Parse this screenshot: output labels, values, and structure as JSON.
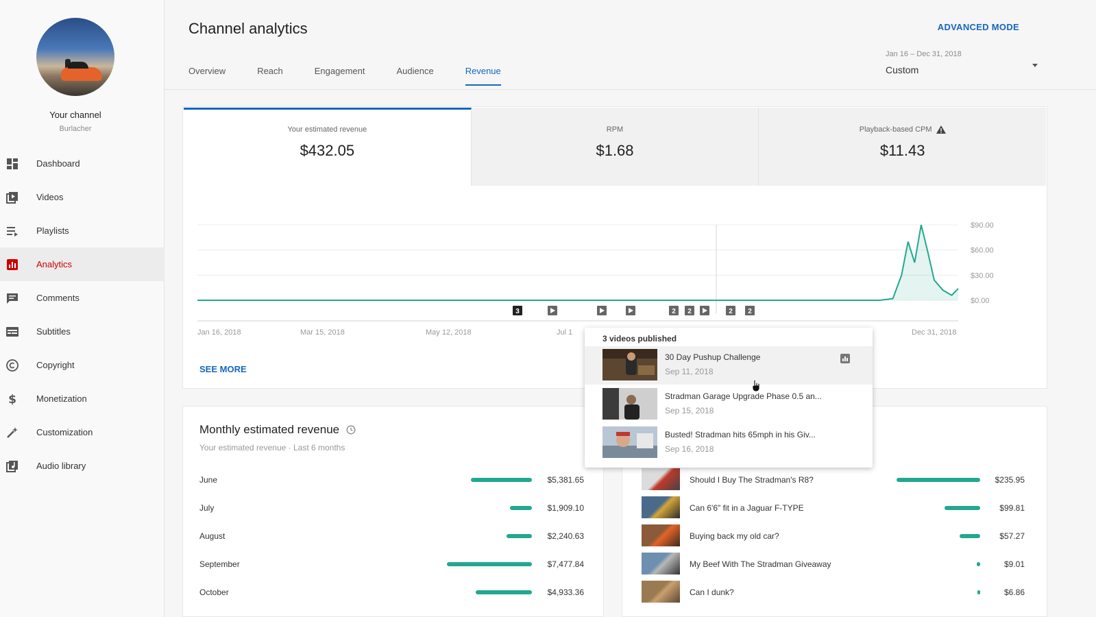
{
  "sidebar": {
    "channel_label": "Your channel",
    "channel_name": "Burlacher",
    "items": [
      {
        "label": "Dashboard",
        "icon": "dashboard-icon"
      },
      {
        "label": "Videos",
        "icon": "videos-icon"
      },
      {
        "label": "Playlists",
        "icon": "playlists-icon"
      },
      {
        "label": "Analytics",
        "icon": "analytics-icon",
        "active": true
      },
      {
        "label": "Comments",
        "icon": "comments-icon"
      },
      {
        "label": "Subtitles",
        "icon": "subtitles-icon"
      },
      {
        "label": "Copyright",
        "icon": "copyright-icon"
      },
      {
        "label": "Monetization",
        "icon": "monetization-icon"
      },
      {
        "label": "Customization",
        "icon": "customization-icon"
      },
      {
        "label": "Audio library",
        "icon": "audio-library-icon"
      }
    ]
  },
  "header": {
    "title": "Channel analytics",
    "advanced_mode": "ADVANCED MODE",
    "tabs": [
      "Overview",
      "Reach",
      "Engagement",
      "Audience",
      "Revenue"
    ],
    "active_tab": "Revenue",
    "date_range": "Jan 16 – Dec 31, 2018",
    "date_preset": "Custom"
  },
  "metrics": [
    {
      "label": "Your estimated revenue",
      "value": "$432.05",
      "active": true
    },
    {
      "label": "RPM",
      "value": "$1.68"
    },
    {
      "label": "Playback-based CPM",
      "value": "$11.43",
      "warning": true
    }
  ],
  "chart_data": {
    "type": "line",
    "x_tick_labels": [
      "Jan 16, 2018",
      "Mar 15, 2018",
      "May 12, 2018",
      "Jul 1",
      "Dec 31, 2018"
    ],
    "y_tick_labels": [
      "$90.00",
      "$60.00",
      "$30.00",
      "$0.00"
    ],
    "ylim": [
      0,
      90
    ],
    "x": [
      "Jan 16, 2018",
      "Mar 15, 2018",
      "May 12, 2018",
      "Jul 1, 2018",
      "Sep 1, 2018",
      "Nov 10, 2018",
      "Nov 20, 2018",
      "Nov 25, 2018",
      "Dec 1, 2018",
      "Dec 5, 2018",
      "Dec 8, 2018",
      "Dec 11, 2018",
      "Dec 14, 2018",
      "Dec 17, 2018",
      "Dec 20, 2018",
      "Dec 24, 2018",
      "Dec 28, 2018",
      "Dec 31, 2018"
    ],
    "values": [
      0,
      0,
      0,
      0,
      0,
      0,
      0,
      0,
      2,
      30,
      70,
      45,
      90,
      58,
      24,
      12,
      6,
      14
    ],
    "color": "#22a88e",
    "publish_markers": [
      "3",
      "play",
      "play",
      "play",
      "2",
      "2",
      "play",
      "2",
      "2"
    ]
  },
  "see_more": "SEE MORE",
  "popup": {
    "title": "3 videos published",
    "videos": [
      {
        "name": "30 Day Pushup Challenge",
        "date": "Sep 11, 2018"
      },
      {
        "name": "Stradman Garage Upgrade Phase 0.5 an...",
        "date": "Sep 15, 2018"
      },
      {
        "name": "Busted! Stradman hits 65mph in his Giv...",
        "date": "Sep 16, 2018"
      }
    ]
  },
  "monthly": {
    "title": "Monthly estimated revenue",
    "subtitle": "Your estimated revenue · Last 6 months",
    "rows": [
      {
        "month": "June",
        "value": "$5,381.65",
        "amount": 5381.65
      },
      {
        "month": "July",
        "value": "$1,909.10",
        "amount": 1909.1
      },
      {
        "month": "August",
        "value": "$2,240.63",
        "amount": 2240.63
      },
      {
        "month": "September",
        "value": "$7,477.84",
        "amount": 7477.84
      },
      {
        "month": "October",
        "value": "$4,933.36",
        "amount": 4933.36
      }
    ]
  },
  "top_videos": {
    "rows": [
      {
        "title": "Should I Buy The Stradman's R8?",
        "value": "$235.95",
        "amount": 235.95
      },
      {
        "title": "Can 6'6\" fit in a Jaguar F-TYPE",
        "value": "$99.81",
        "amount": 99.81
      },
      {
        "title": "Buying back my old car?",
        "value": "$57.27",
        "amount": 57.27
      },
      {
        "title": "My Beef With The Stradman Giveaway",
        "value": "$9.01",
        "amount": 9.01
      },
      {
        "title": "Can I dunk?",
        "value": "$6.86",
        "amount": 6.86
      }
    ]
  },
  "colors": {
    "accent": "#1565c0",
    "bar": "#22a88e",
    "active_nav": "#cc0000"
  }
}
